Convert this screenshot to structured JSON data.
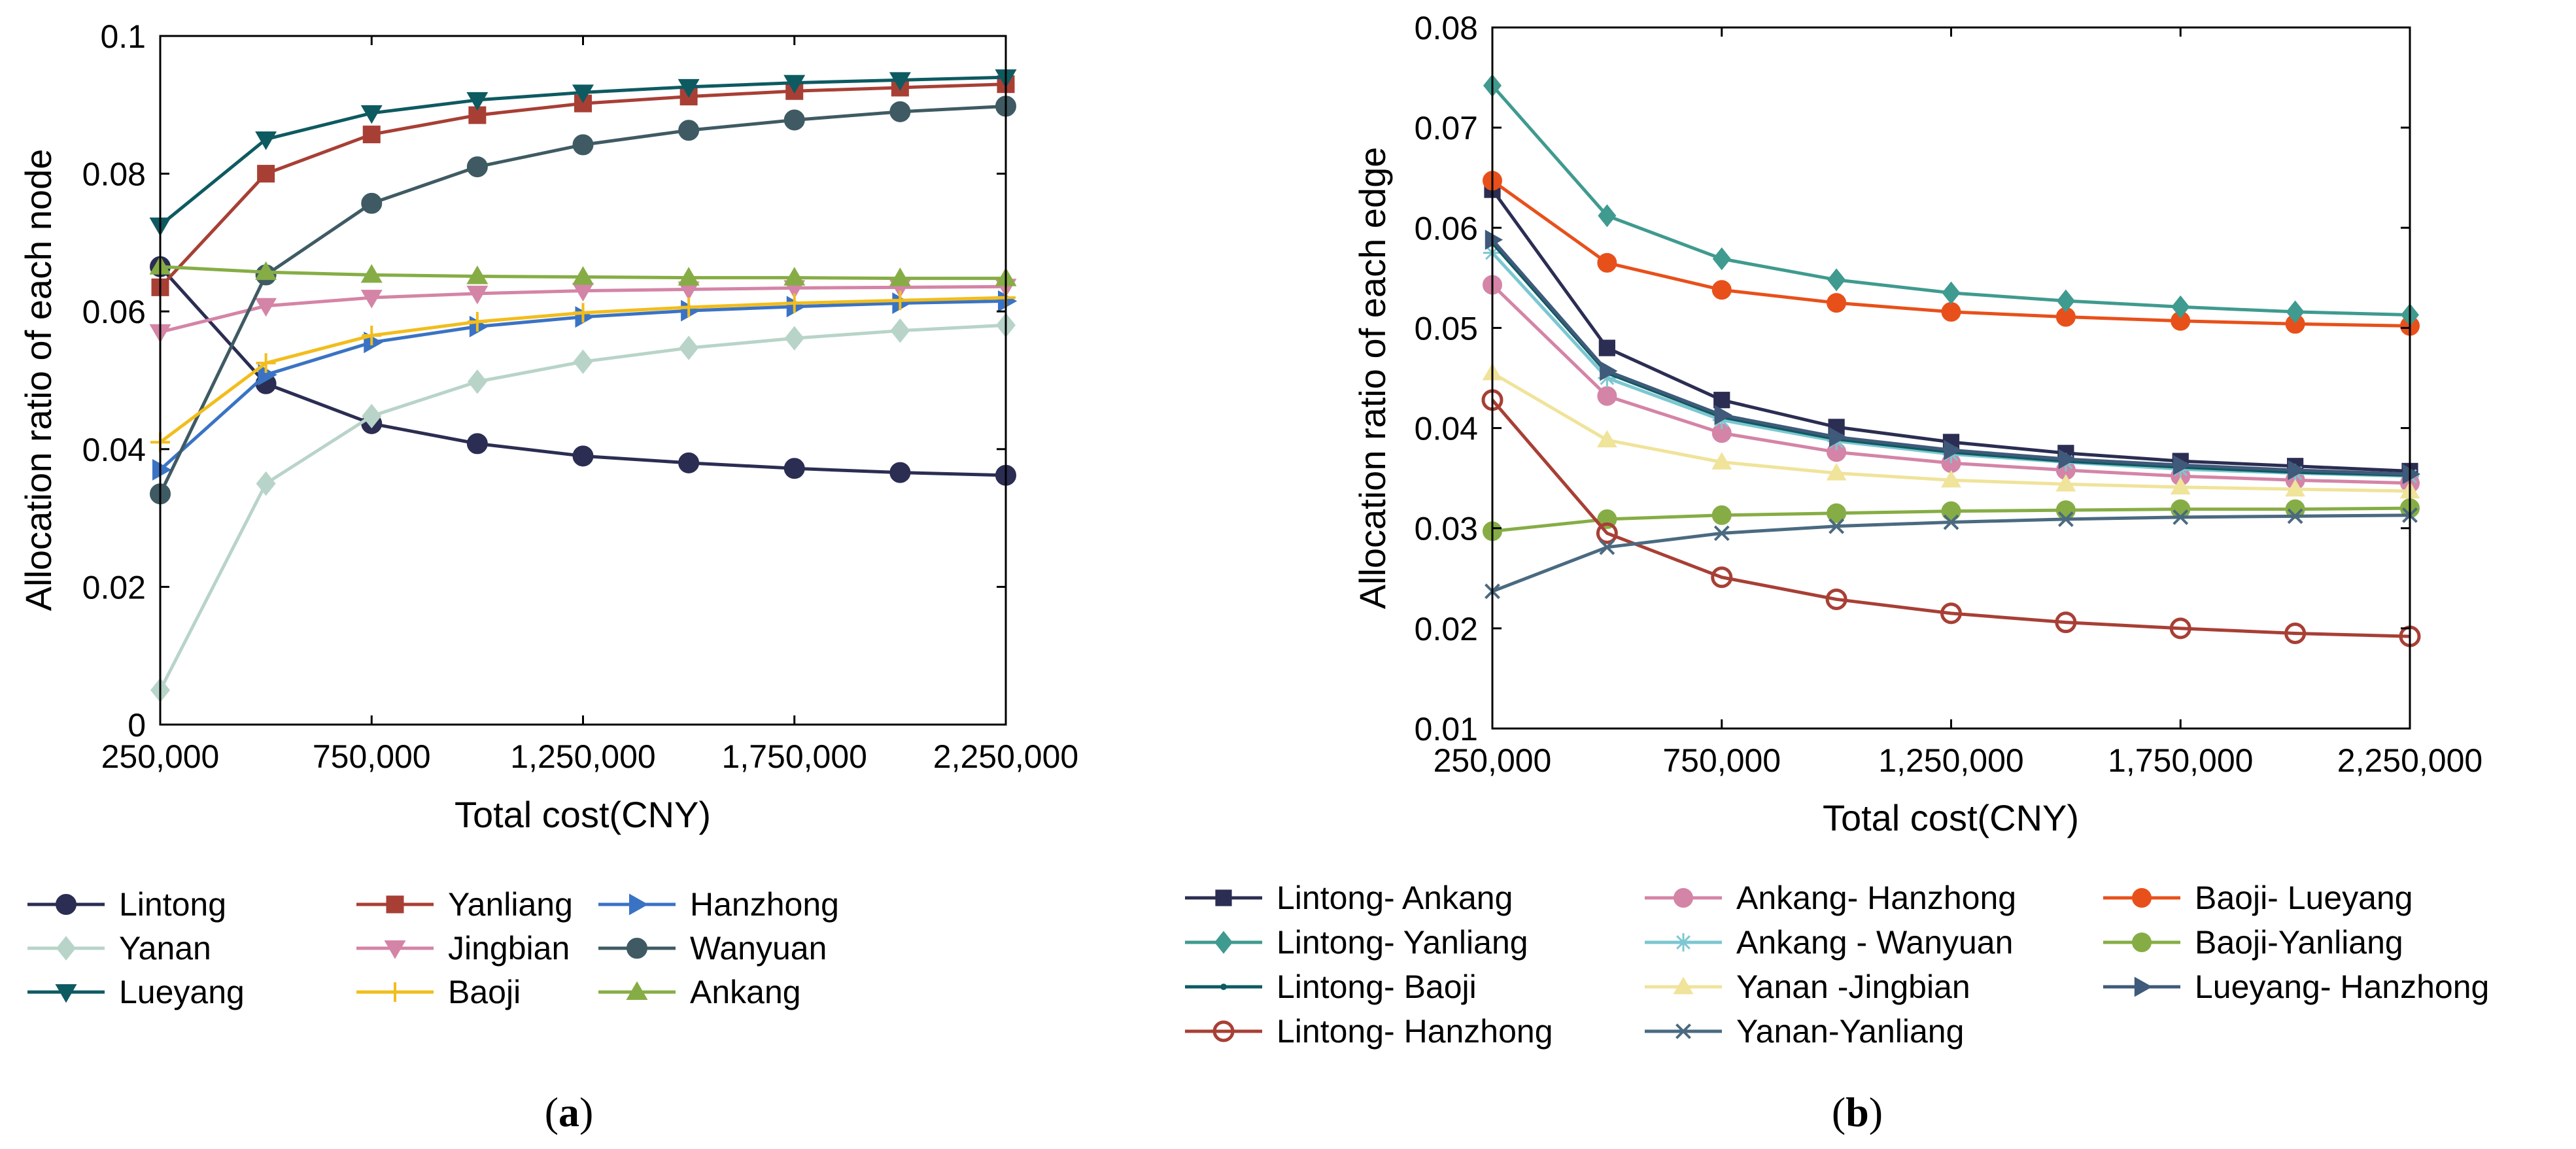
{
  "chart_data": [
    {
      "type": "line",
      "panel_label": "(a)",
      "panel_letter": "a",
      "xlabel": "Total cost(CNY)",
      "ylabel": "Allocation ratio of each node",
      "x": [
        250000,
        500000,
        750000,
        1000000,
        1250000,
        1500000,
        1750000,
        2000000,
        2250000
      ],
      "xlim": [
        250000,
        2250000
      ],
      "xticks": [
        250000,
        750000,
        1250000,
        1750000,
        2250000
      ],
      "xtick_labels": [
        "250,000",
        "750,000",
        "1,250,000",
        "1,750,000",
        "2,250,000"
      ],
      "ylim": [
        0,
        0.1
      ],
      "yticks": [
        0,
        0.02,
        0.04,
        0.06,
        0.08,
        0.1
      ],
      "ytick_labels": [
        "0",
        "0.02",
        "0.04",
        "0.06",
        "0.08",
        "0.1"
      ],
      "grid": false,
      "legend_columns": 3,
      "series": [
        {
          "name": "Lintong",
          "color": "#2b2d52",
          "marker": "circle-filled",
          "values": [
            0.0665,
            0.0495,
            0.0437,
            0.0408,
            0.039,
            0.038,
            0.0372,
            0.0366,
            0.0362
          ]
        },
        {
          "name": "Yanliang",
          "color": "#a83f35",
          "marker": "square",
          "values": [
            0.0635,
            0.08,
            0.0857,
            0.0885,
            0.0902,
            0.0912,
            0.092,
            0.0925,
            0.093
          ]
        },
        {
          "name": "Hanzhong",
          "color": "#3a73c4",
          "marker": "triangle-right",
          "values": [
            0.037,
            0.0508,
            0.0555,
            0.0578,
            0.0592,
            0.0601,
            0.0607,
            0.0612,
            0.0615
          ]
        },
        {
          "name": "Yanan",
          "color": "#b8d4c8",
          "marker": "diamond",
          "values": [
            0.005,
            0.035,
            0.0448,
            0.0498,
            0.0527,
            0.0547,
            0.0561,
            0.0572,
            0.058
          ]
        },
        {
          "name": "Jingbian",
          "color": "#d484a6",
          "marker": "triangle-down",
          "values": [
            0.057,
            0.0608,
            0.062,
            0.0626,
            0.063,
            0.0632,
            0.0634,
            0.0635,
            0.0636
          ]
        },
        {
          "name": "Wanyuan",
          "color": "#3f5a63",
          "marker": "circle-filled",
          "values": [
            0.0335,
            0.0653,
            0.0757,
            0.081,
            0.0842,
            0.0863,
            0.0878,
            0.089,
            0.0898
          ]
        },
        {
          "name": "Lueyang",
          "color": "#0e5a61",
          "marker": "triangle-down",
          "values": [
            0.0725,
            0.085,
            0.0888,
            0.0907,
            0.0918,
            0.0926,
            0.0932,
            0.0936,
            0.094
          ]
        },
        {
          "name": "Baoji",
          "color": "#f2bd1c",
          "marker": "plus",
          "values": [
            0.041,
            0.0525,
            0.0565,
            0.0585,
            0.0598,
            0.0606,
            0.0612,
            0.0616,
            0.062
          ]
        },
        {
          "name": "Ankang",
          "color": "#86ad45",
          "marker": "triangle-up",
          "values": [
            0.0665,
            0.0657,
            0.0653,
            0.0651,
            0.065,
            0.0649,
            0.0649,
            0.0648,
            0.0648
          ]
        }
      ]
    },
    {
      "type": "line",
      "panel_label": "(b)",
      "panel_letter": "b",
      "xlabel": "Total cost(CNY)",
      "ylabel": "Allocation ratio of each edge",
      "x": [
        250000,
        500000,
        750000,
        1000000,
        1250000,
        1500000,
        1750000,
        2000000,
        2250000
      ],
      "xlim": [
        250000,
        2250000
      ],
      "xticks": [
        250000,
        750000,
        1250000,
        1750000,
        2250000
      ],
      "xtick_labels": [
        "250,000",
        "750,000",
        "1,250,000",
        "1,750,000",
        "2,250,000"
      ],
      "ylim": [
        0.01,
        0.08
      ],
      "yticks": [
        0.01,
        0.02,
        0.03,
        0.04,
        0.05,
        0.06,
        0.07,
        0.08
      ],
      "ytick_labels": [
        "0.01",
        "0.02",
        "0.03",
        "0.04",
        "0.05",
        "0.06",
        "0.07",
        "0.08"
      ],
      "grid": false,
      "legend_columns": 3,
      "series": [
        {
          "name": "Lintong- Ankang",
          "color": "#2b2d52",
          "marker": "square",
          "values": [
            0.0638,
            0.048,
            0.0428,
            0.0401,
            0.0386,
            0.0375,
            0.0367,
            0.0362,
            0.0357
          ]
        },
        {
          "name": "Ankang- Hanzhong",
          "color": "#d484a6",
          "marker": "circle-filled",
          "values": [
            0.0543,
            0.0432,
            0.0395,
            0.0376,
            0.0365,
            0.0358,
            0.0352,
            0.0348,
            0.0345
          ]
        },
        {
          "name": "Baoji- Lueyang",
          "color": "#e8501b",
          "marker": "circle-filled",
          "values": [
            0.0647,
            0.0565,
            0.0538,
            0.0525,
            0.0516,
            0.0511,
            0.0507,
            0.0504,
            0.0502
          ]
        },
        {
          "name": "Lintong- Yanliang",
          "color": "#3f9a8f",
          "marker": "diamond",
          "values": [
            0.0742,
            0.0612,
            0.0569,
            0.0548,
            0.0535,
            0.0527,
            0.0521,
            0.0516,
            0.0513
          ]
        },
        {
          "name": "Ankang - Wanyuan",
          "color": "#7cc7d1",
          "marker": "asterisk",
          "values": [
            0.0575,
            0.045,
            0.0408,
            0.0387,
            0.0374,
            0.0366,
            0.0359,
            0.0355,
            0.0352
          ]
        },
        {
          "name": "Baoji-Yanliang",
          "color": "#86ad45",
          "marker": "circle-filled",
          "values": [
            0.0297,
            0.0309,
            0.0313,
            0.0315,
            0.0317,
            0.0318,
            0.0319,
            0.0319,
            0.032
          ]
        },
        {
          "name": "Lintong- Baoji",
          "color": "#0e5a61",
          "marker": "dot",
          "values": [
            0.0585,
            0.0455,
            0.0411,
            0.0389,
            0.0376,
            0.0367,
            0.0361,
            0.0356,
            0.0353
          ]
        },
        {
          "name": "Yanan -Jingbian",
          "color": "#f0e39a",
          "marker": "triangle-up",
          "values": [
            0.0455,
            0.0388,
            0.0366,
            0.0355,
            0.0348,
            0.0344,
            0.0341,
            0.0339,
            0.0337
          ]
        },
        {
          "name": "Lueyang- Hanzhong",
          "color": "#3f5a7a",
          "marker": "triangle-right",
          "values": [
            0.0588,
            0.0457,
            0.0413,
            0.0391,
            0.0378,
            0.0369,
            0.0363,
            0.0358,
            0.0354
          ]
        },
        {
          "name": "Lintong- Hanzhong",
          "color": "#a83f35",
          "marker": "circle-open",
          "values": [
            0.0428,
            0.0295,
            0.0251,
            0.0229,
            0.0215,
            0.0206,
            0.02,
            0.0195,
            0.0192
          ]
        },
        {
          "name": "Yanan-Yanliang",
          "color": "#4a6a80",
          "marker": "x",
          "values": [
            0.0237,
            0.0281,
            0.0295,
            0.0302,
            0.0306,
            0.0309,
            0.0311,
            0.0312,
            0.0313
          ]
        }
      ]
    }
  ]
}
